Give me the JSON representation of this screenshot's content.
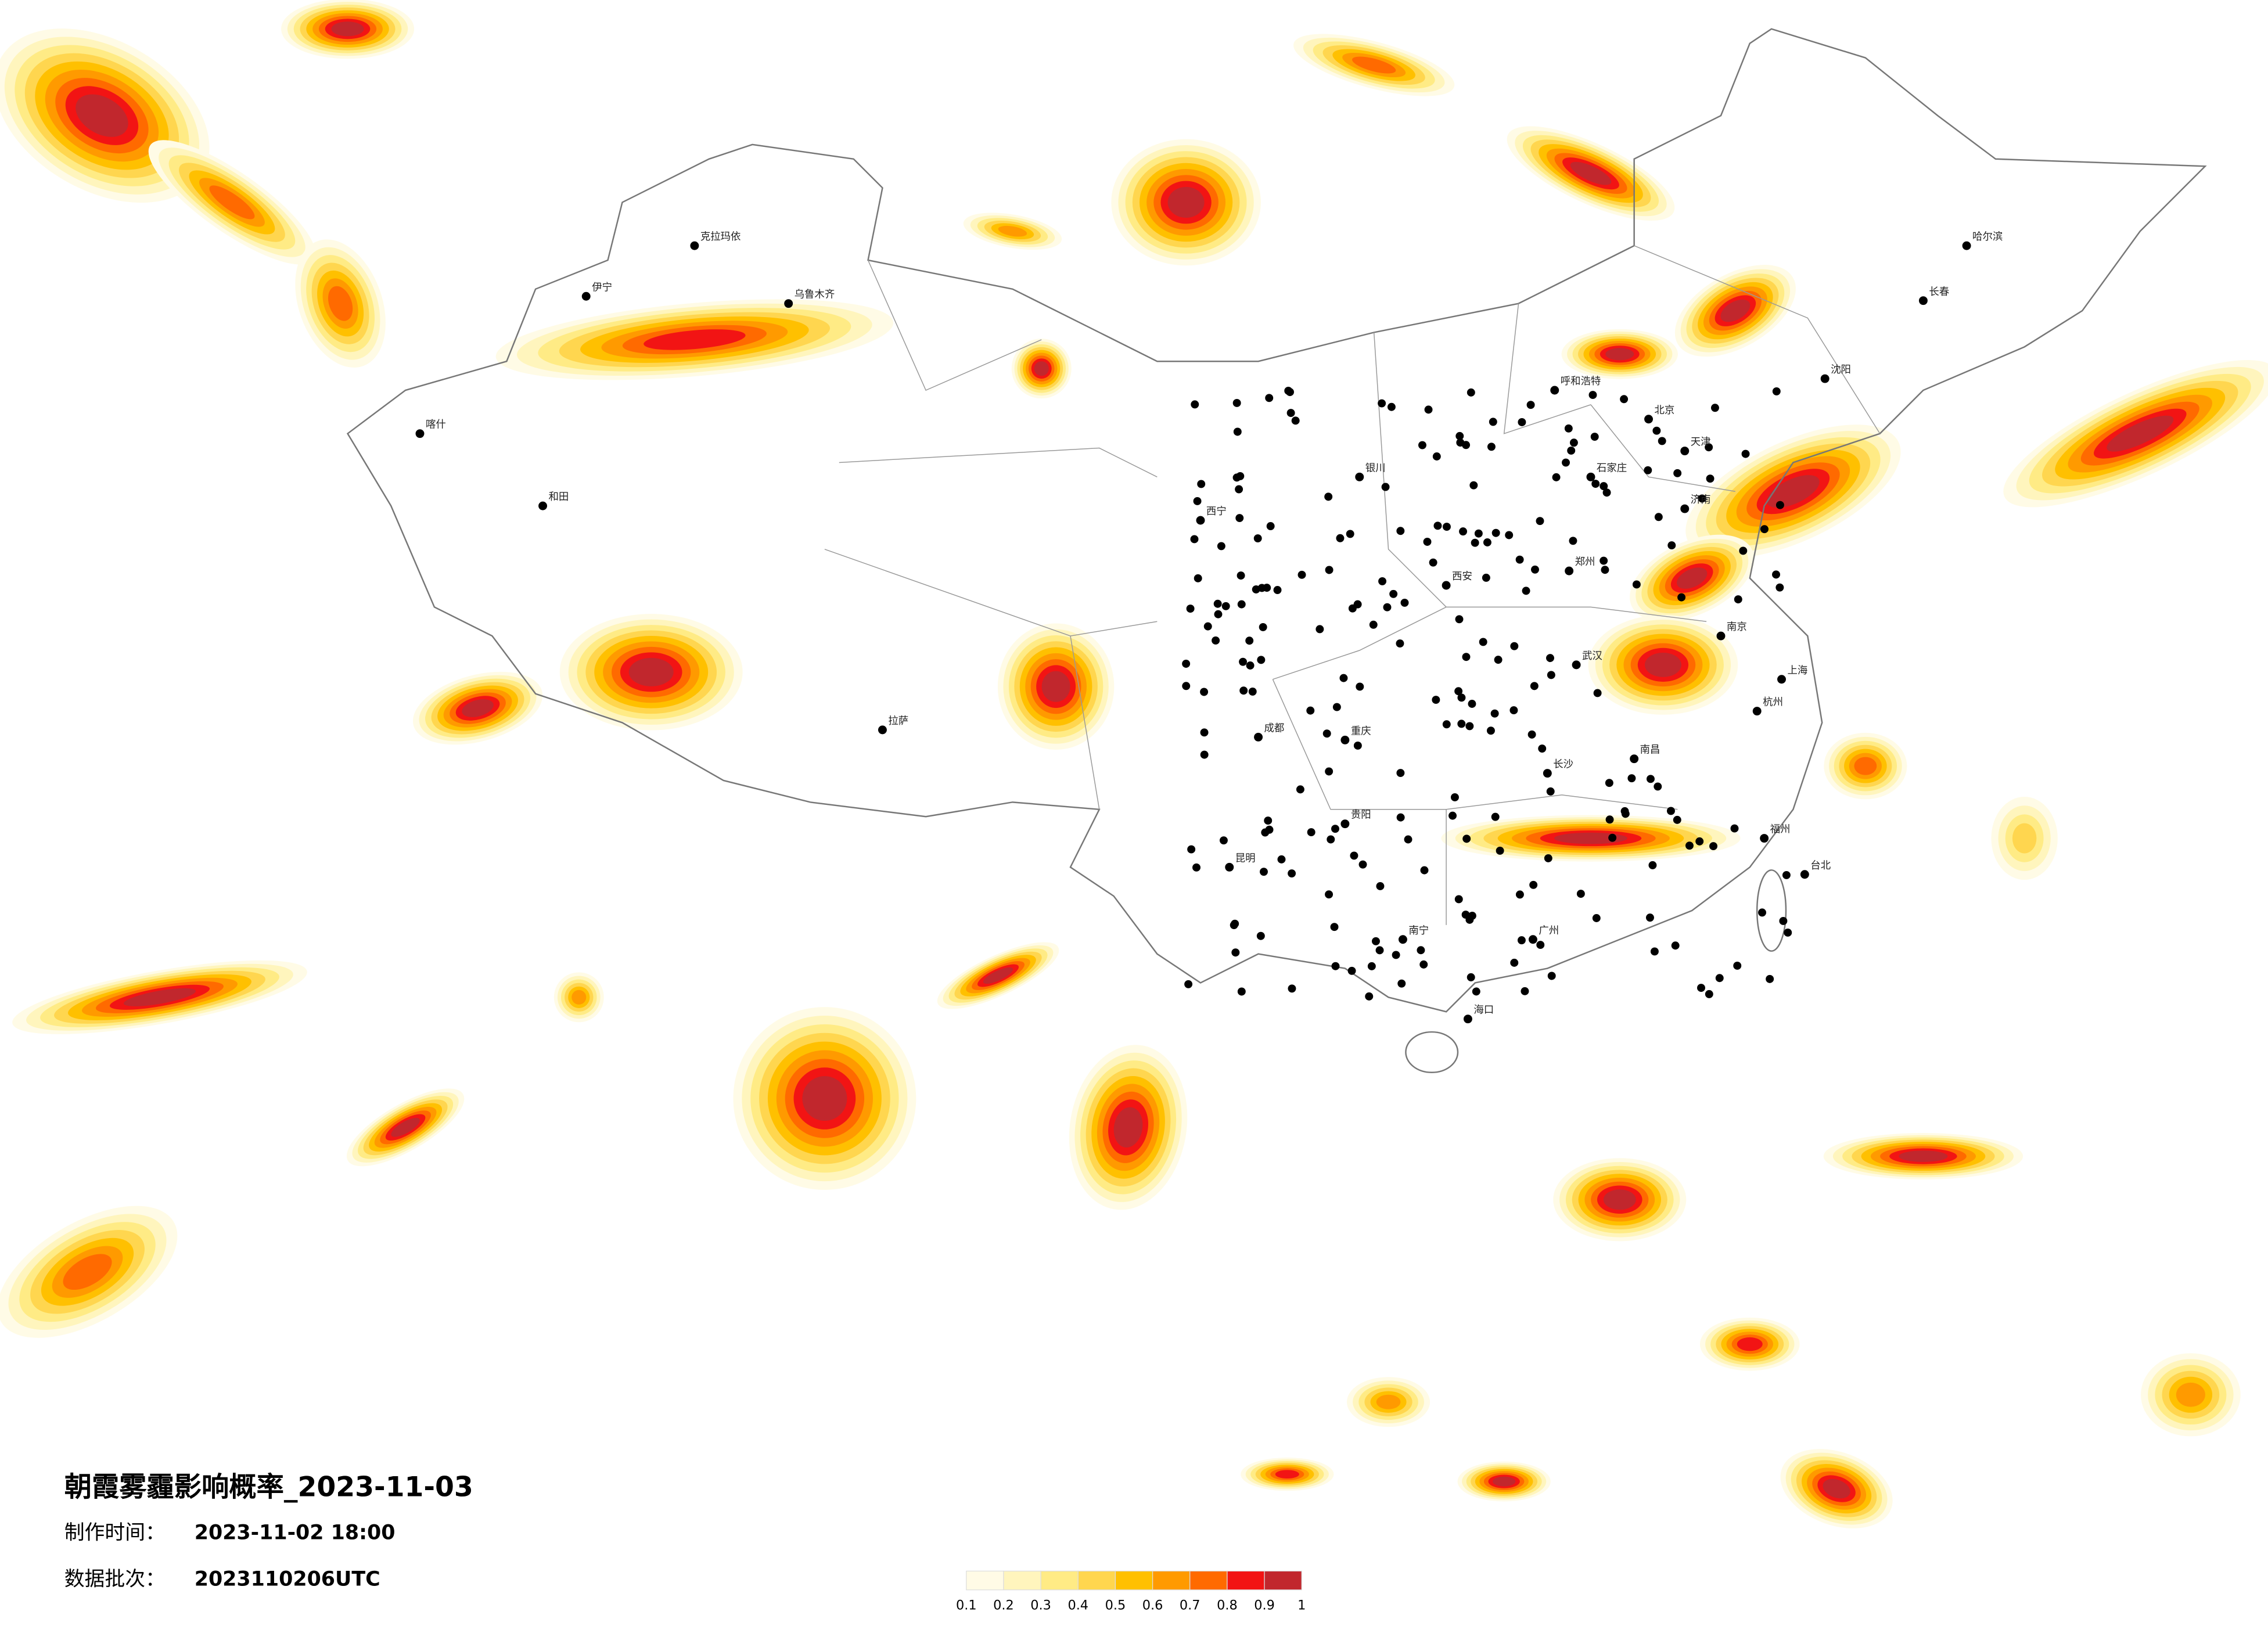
{
  "title": "朝霞雾霾影响概率_2023-11-03",
  "production_time": {
    "label": "制作时间：",
    "value": "2023-11-02 18:00"
  },
  "data_batch": {
    "label": "数据批次：",
    "value": "2023110206UTC"
  },
  "colorbar": {
    "ticks": [
      0.1,
      0.2,
      0.3,
      0.4,
      0.5,
      0.6,
      0.7,
      0.8,
      0.9,
      1
    ],
    "colors": [
      "#fffbe6",
      "#fff5bd",
      "#ffeb85",
      "#ffd64f",
      "#ffc000",
      "#ff9a00",
      "#ff6a00",
      "#f21414",
      "#c1272d"
    ]
  },
  "cities": [
    "哈尔滨",
    "长春",
    "沈阳",
    "北京",
    "天津",
    "石家庄",
    "济南",
    "郑州",
    "西安",
    "武汉",
    "南京",
    "上海",
    "杭州",
    "长沙",
    "南昌",
    "福州",
    "广州",
    "南宁",
    "贵阳",
    "昆明",
    "成都",
    "重庆",
    "西宁",
    "拉萨",
    "乌鲁木齐",
    "呼和浩特",
    "银川",
    "海口",
    "台北",
    "和田",
    "喀什",
    "伊宁",
    "克拉玛依"
  ]
}
